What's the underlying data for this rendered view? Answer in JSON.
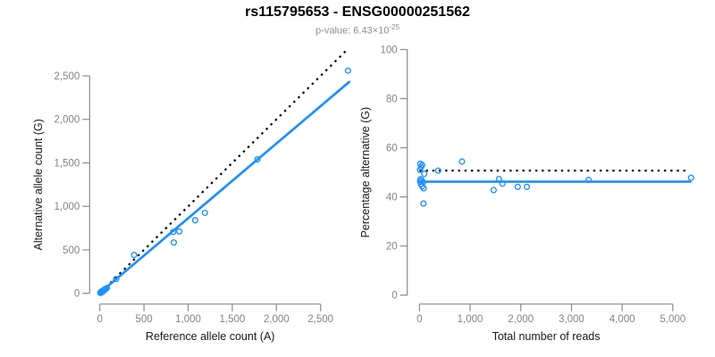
{
  "header": {
    "title": "rs115795653 - ENSG00000251562",
    "subtitle_prefix": "p-value: 6.43×10",
    "subtitle_exponent": "-25"
  },
  "colors": {
    "accent_blue": "#1E90FF",
    "dashed_black": "#000000",
    "axis_line_gray": "#8a8a8a",
    "tick_label_gray": "#848484",
    "axis_title_color": "#1a1a1a",
    "subtitle_gray": "#8d8d8d",
    "background": "#ffffff"
  },
  "chart_data": [
    {
      "type": "scatter",
      "name": "allele-counts-plot",
      "xlabel": "Reference allele count (A)",
      "ylabel": "Alternative allele count (G)",
      "xlim": [
        0,
        2870
      ],
      "ylim": [
        0,
        2870
      ],
      "xtick_values": [
        0,
        500,
        1000,
        1500,
        2000,
        2500
      ],
      "xtick_labels": [
        "0",
        "500",
        "1,000",
        "1,500",
        "2,000",
        "2,500"
      ],
      "ytick_values": [
        0,
        500,
        1000,
        1500,
        2000,
        2500
      ],
      "ytick_labels": [
        "0",
        "500",
        "1,000",
        "1,500",
        "2,000",
        "2,500"
      ],
      "grid": false,
      "legend": "none",
      "points": [
        [
          6,
          5
        ],
        [
          10,
          8
        ],
        [
          14,
          11
        ],
        [
          18,
          14
        ],
        [
          22,
          17
        ],
        [
          26,
          21
        ],
        [
          30,
          24
        ],
        [
          34,
          27
        ],
        [
          38,
          31
        ],
        [
          42,
          34
        ],
        [
          46,
          37
        ],
        [
          50,
          41
        ],
        [
          55,
          44
        ],
        [
          60,
          48
        ],
        [
          12,
          6
        ],
        [
          20,
          12
        ],
        [
          28,
          18
        ],
        [
          36,
          24
        ],
        [
          44,
          30
        ],
        [
          52,
          38
        ],
        [
          8,
          10
        ],
        [
          16,
          18
        ],
        [
          24,
          26
        ],
        [
          70,
          55
        ],
        [
          80,
          62
        ],
        [
          185,
          164
        ],
        [
          388,
          441
        ],
        [
          830,
          705
        ],
        [
          900,
          712
        ],
        [
          838,
          585
        ],
        [
          1080,
          840
        ],
        [
          1190,
          925
        ],
        [
          1785,
          1540
        ],
        [
          2810,
          2560
        ]
      ],
      "dashed_identity_line": {
        "from": [
          15,
          15
        ],
        "to": [
          2790,
          2790
        ]
      },
      "solid_fit_line": {
        "from": [
          0,
          5
        ],
        "to": [
          2824,
          2430
        ]
      }
    },
    {
      "type": "scatter",
      "name": "percentage-vs-reads-plot",
      "xlabel": "Total number of reads",
      "ylabel": "Percentage alternative (G)",
      "xlim": [
        0,
        5450
      ],
      "ylim": [
        0,
        100
      ],
      "xtick_values": [
        0,
        1000,
        2000,
        3000,
        4000,
        5000
      ],
      "xtick_labels": [
        "0",
        "1,000",
        "2,000",
        "3,000",
        "4,000",
        "5,000"
      ],
      "ytick_values": [
        0,
        20,
        40,
        60,
        80,
        100
      ],
      "ytick_labels": [
        "0",
        "20",
        "40",
        "60",
        "80",
        "100"
      ],
      "grid": false,
      "legend": "none",
      "points": [
        [
          15,
          53.5
        ],
        [
          55,
          53.0
        ],
        [
          30,
          52.2
        ],
        [
          10,
          51.0
        ],
        [
          95,
          49.4
        ],
        [
          20,
          47.2
        ],
        [
          45,
          46.8
        ],
        [
          12,
          46.3
        ],
        [
          70,
          46.0
        ],
        [
          30,
          45.2
        ],
        [
          55,
          44.3
        ],
        [
          85,
          43.5
        ],
        [
          80,
          37.3
        ],
        [
          370,
          50.7
        ],
        [
          840,
          54.4
        ],
        [
          1465,
          42.8
        ],
        [
          1570,
          47.3
        ],
        [
          1640,
          45.4
        ],
        [
          1940,
          44.1
        ],
        [
          2120,
          44.1
        ],
        [
          3340,
          46.9
        ],
        [
          5360,
          47.8
        ]
      ],
      "dashed_identity_line": {
        "from": [
          0,
          50.7
        ],
        "to": [
          5295,
          50.7
        ]
      },
      "solid_fit_line": {
        "from": [
          0,
          46.2
        ],
        "to": [
          5345,
          46.2
        ]
      }
    }
  ]
}
